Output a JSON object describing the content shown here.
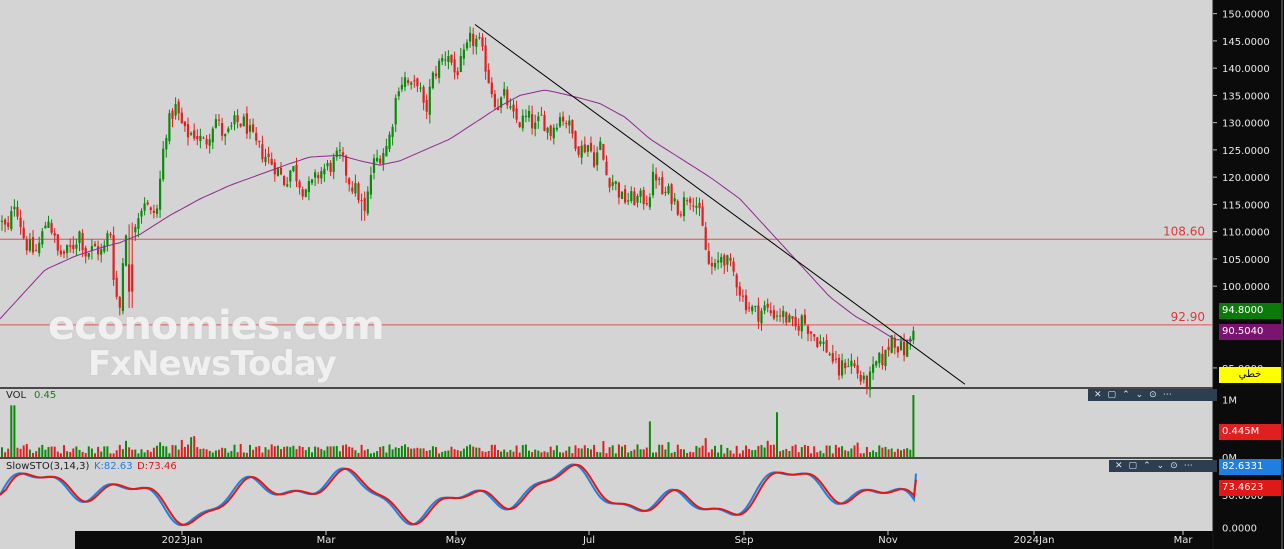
{
  "chart_data": {
    "type": "candlestick",
    "price": {
      "ylim": [
        81.5,
        152.5
      ],
      "ticks": [
        "150.0000",
        "145.0000",
        "140.0000",
        "135.0000",
        "130.0000",
        "125.0000",
        "120.0000",
        "115.0000",
        "110.0000",
        "105.0000",
        "100.0000",
        "85.0000"
      ],
      "tick_values": [
        150,
        145,
        140,
        135,
        130,
        125,
        120,
        115,
        110,
        105,
        100,
        85
      ],
      "horizontal_lines": [
        {
          "label": "108.60",
          "value": 108.6
        },
        {
          "label": "92.90",
          "value": 92.9
        }
      ],
      "last_price": "94.8000",
      "ma_value": "90.5040",
      "tool_label": "خطي",
      "anchors": [
        [
          0,
          112
        ],
        [
          8,
          110
        ],
        [
          15,
          116
        ],
        [
          25,
          108
        ],
        [
          35,
          106
        ],
        [
          40,
          108
        ],
        [
          48,
          113
        ],
        [
          58,
          106
        ],
        [
          65,
          106
        ],
        [
          72,
          107
        ],
        [
          80,
          110
        ],
        [
          85,
          106
        ],
        [
          95,
          107
        ],
        [
          103,
          106
        ],
        [
          110,
          111
        ],
        [
          115,
          99
        ],
        [
          120,
          96
        ],
        [
          125,
          111
        ],
        [
          130,
          109
        ],
        [
          135,
          112
        ],
        [
          145,
          116
        ],
        [
          150,
          113
        ],
        [
          157,
          114
        ],
        [
          165,
          128
        ],
        [
          175,
          133
        ],
        [
          185,
          128
        ],
        [
          195,
          128
        ],
        [
          205,
          126
        ],
        [
          215,
          131
        ],
        [
          225,
          127
        ],
        [
          235,
          130
        ],
        [
          245,
          130
        ],
        [
          255,
          126
        ],
        [
          265,
          124
        ],
        [
          275,
          122
        ],
        [
          285,
          119
        ],
        [
          292,
          122
        ],
        [
          302,
          118
        ],
        [
          310,
          118
        ],
        [
          320,
          121
        ],
        [
          330,
          122
        ],
        [
          340,
          124
        ],
        [
          350,
          119
        ],
        [
          358,
          117
        ],
        [
          365,
          113
        ],
        [
          372,
          122
        ],
        [
          380,
          124
        ],
        [
          388,
          126
        ],
        [
          393,
          131
        ],
        [
          398,
          137
        ],
        [
          405,
          138
        ],
        [
          412,
          136
        ],
        [
          418,
          138
        ],
        [
          425,
          131
        ],
        [
          432,
          138
        ],
        [
          440,
          141
        ],
        [
          448,
          143
        ],
        [
          455,
          139
        ],
        [
          462,
          141
        ],
        [
          470,
          145
        ],
        [
          478,
          145
        ],
        [
          485,
          141
        ],
        [
          490,
          137
        ],
        [
          497,
          133
        ],
        [
          505,
          135
        ],
        [
          512,
          131
        ],
        [
          520,
          130
        ],
        [
          528,
          131
        ],
        [
          535,
          129
        ],
        [
          542,
          131
        ],
        [
          550,
          128
        ],
        [
          558,
          131
        ],
        [
          565,
          131
        ],
        [
          572,
          128
        ],
        [
          580,
          125
        ],
        [
          588,
          126
        ],
        [
          595,
          123
        ],
        [
          600,
          126
        ],
        [
          607,
          120
        ],
        [
          615,
          119
        ],
        [
          622,
          116
        ],
        [
          630,
          116
        ],
        [
          640,
          116
        ],
        [
          648,
          116
        ],
        [
          655,
          121
        ],
        [
          662,
          117
        ],
        [
          670,
          117
        ],
        [
          680,
          114
        ],
        [
          688,
          117
        ],
        [
          695,
          116
        ],
        [
          702,
          111
        ],
        [
          708,
          104
        ],
        [
          715,
          103
        ],
        [
          722,
          106
        ],
        [
          728,
          104
        ],
        [
          735,
          102
        ],
        [
          742,
          98
        ],
        [
          750,
          96
        ],
        [
          758,
          95
        ],
        [
          765,
          96
        ],
        [
          772,
          95
        ],
        [
          780,
          95
        ],
        [
          787,
          94
        ],
        [
          795,
          92
        ],
        [
          802,
          94
        ],
        [
          810,
          92
        ],
        [
          818,
          90
        ],
        [
          825,
          89
        ],
        [
          832,
          87
        ],
        [
          838,
          84
        ],
        [
          845,
          86
        ],
        [
          852,
          86
        ],
        [
          858,
          84
        ],
        [
          863,
          82
        ],
        [
          870,
          83
        ],
        [
          877,
          86
        ],
        [
          885,
          87
        ],
        [
          892,
          91
        ],
        [
          898,
          89
        ],
        [
          905,
          88
        ],
        [
          910,
          90
        ],
        [
          916,
          95
        ]
      ],
      "ma_anchors": [
        [
          0,
          94
        ],
        [
          20,
          98
        ],
        [
          45,
          103
        ],
        [
          75,
          105.5
        ],
        [
          100,
          107
        ],
        [
          120,
          108
        ],
        [
          140,
          109.5
        ],
        [
          170,
          113
        ],
        [
          200,
          116
        ],
        [
          230,
          118.5
        ],
        [
          260,
          120.5
        ],
        [
          290,
          122.5
        ],
        [
          310,
          123.7
        ],
        [
          340,
          124
        ],
        [
          360,
          123
        ],
        [
          380,
          122.2
        ],
        [
          400,
          123
        ],
        [
          425,
          125
        ],
        [
          450,
          127
        ],
        [
          475,
          130
        ],
        [
          500,
          133
        ],
        [
          520,
          135
        ],
        [
          545,
          136
        ],
        [
          565,
          135.2
        ],
        [
          580,
          134.5
        ],
        [
          600,
          133.5
        ],
        [
          625,
          131
        ],
        [
          650,
          127
        ],
        [
          680,
          123.5
        ],
        [
          710,
          120
        ],
        [
          740,
          116
        ],
        [
          770,
          110
        ],
        [
          800,
          104
        ],
        [
          830,
          98
        ],
        [
          855,
          94.5
        ],
        [
          875,
          92.5
        ],
        [
          895,
          90.2
        ],
        [
          915,
          90
        ]
      ],
      "trendline": [
        [
          475,
          148
        ],
        [
          965,
          82
        ]
      ]
    },
    "volume": {
      "label": "VOL",
      "value_label": "0.45",
      "ticks": [
        "1M",
        "0M"
      ],
      "tick_values": [
        1000000,
        0
      ],
      "current": "0.445M",
      "ylim": [
        0,
        1150000
      ]
    },
    "stochastic": {
      "label": "SlowSTO(3,14,3)",
      "k_label": "K:82.63",
      "d_label": "D:73.46",
      "k_value": "82.6331",
      "d_value": "73.4623",
      "ticks": [
        "50.0000",
        "0.0000"
      ],
      "tick_values": [
        50,
        0
      ],
      "ylim": [
        -5,
        105
      ]
    },
    "x_axis": {
      "labels": [
        {
          "text": "2023Jan",
          "x": 182
        },
        {
          "text": "Mar",
          "x": 326
        },
        {
          "text": "May",
          "x": 456
        },
        {
          "text": "Jul",
          "x": 589
        },
        {
          "text": "Sep",
          "x": 744
        },
        {
          "text": "Nov",
          "x": 888
        },
        {
          "text": "2024Jan",
          "x": 1034
        },
        {
          "text": "Mar",
          "x": 1183
        }
      ]
    },
    "colors": {
      "up": "#0a8a0a",
      "down": "#e02020",
      "ma": "#8e2a8e",
      "trend": "#000000",
      "hline": "#e05050",
      "k_line": "#1e7fe0",
      "d_line": "#e01818",
      "axis_bg": "#0b0b0b",
      "last_tag": "#0b7a0b",
      "ma_tag": "#7a1470",
      "tool_tag": "#ffff00"
    }
  },
  "watermark": {
    "line1": "economies.com",
    "line2": "FxNewsToday"
  },
  "panel_controls": [
    "✕",
    "▢",
    "⌃",
    "⌄",
    "⊙",
    "⋯"
  ]
}
